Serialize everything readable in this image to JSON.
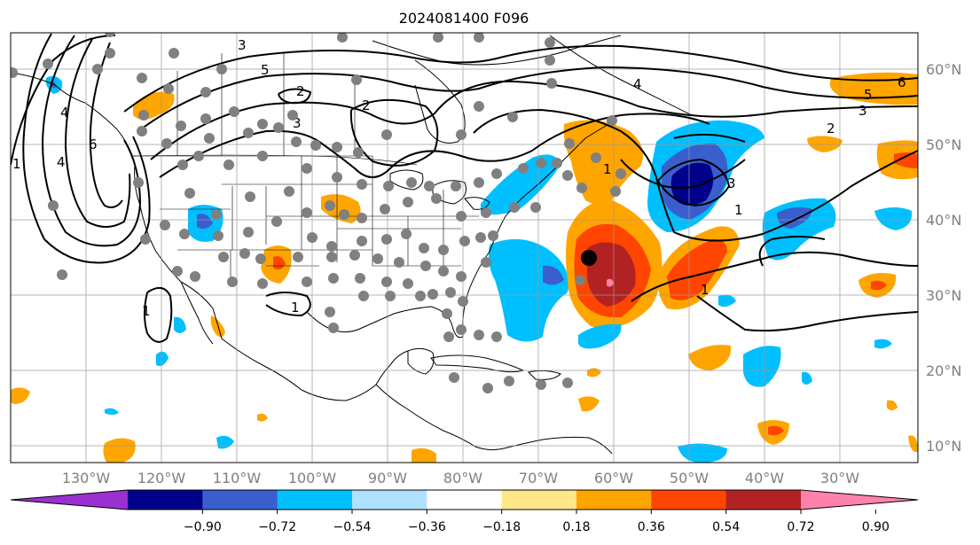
{
  "title": "2024081400 F096",
  "longitude_labels": [
    "130°W",
    "120°W",
    "110°W",
    "100°W",
    "90°W",
    "80°W",
    "70°W",
    "60°W",
    "50°W",
    "40°W",
    "30°W"
  ],
  "latitude_labels": [
    "60°N",
    "50°N",
    "40°N",
    "30°N",
    "20°N",
    "10°N"
  ],
  "colorbar": {
    "tick_labels": [
      "−0.90",
      "−0.72",
      "−0.54",
      "−0.36",
      "−0.18",
      "0.18",
      "0.36",
      "0.54",
      "0.72",
      "0.90"
    ],
    "colors": [
      "#9b30d0",
      "#00008b",
      "#3a5fcd",
      "#00bfff",
      "#b0e2ff",
      "#ffffff",
      "#ffe78a",
      "#ffa500",
      "#ff4500",
      "#b22222",
      "#ff82ab"
    ]
  },
  "contour_labels": [
    "1",
    "4",
    "6",
    "5",
    "2",
    "3",
    "2",
    "4",
    "1",
    "3",
    "1",
    "4",
    "5",
    "6",
    "3",
    "2",
    "1",
    "3",
    "1",
    "1"
  ],
  "storm_marker": "storm-position"
}
